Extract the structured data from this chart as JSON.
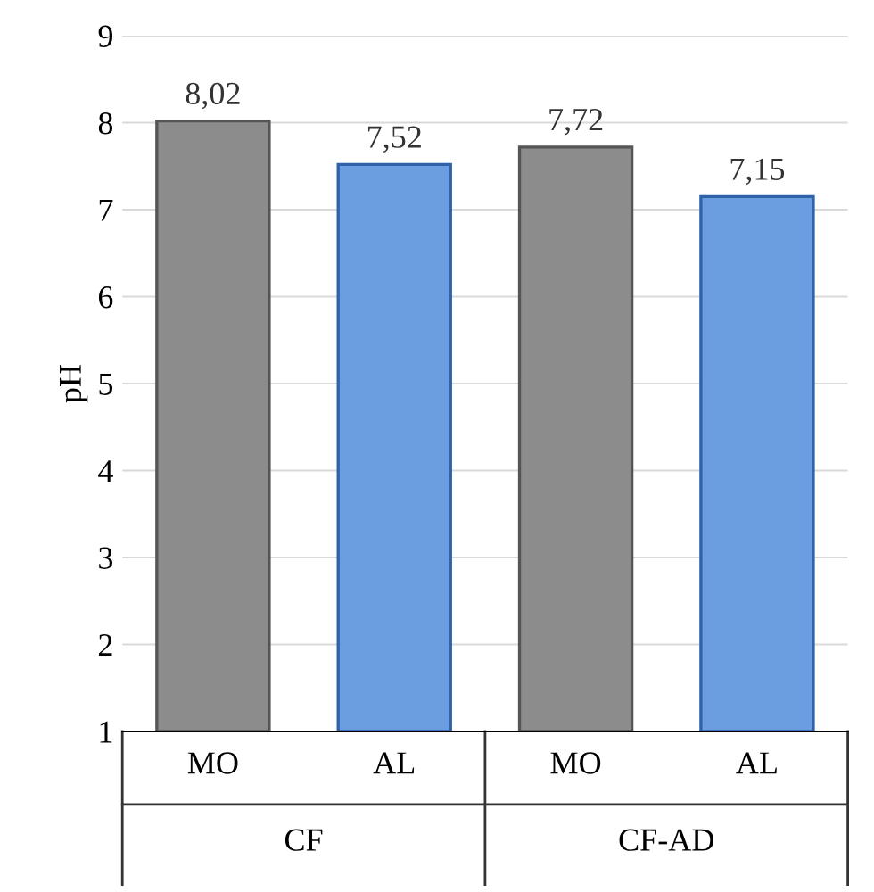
{
  "chart_data": {
    "type": "bar",
    "ylabel": "pH",
    "categories": [
      "MO",
      "AL",
      "MO",
      "AL"
    ],
    "values": [
      8.02,
      7.52,
      7.72,
      7.15
    ],
    "value_labels": [
      "8,02",
      "7,52",
      "7,72",
      "7,15"
    ],
    "colors": [
      "#8c8c8c",
      "#6b9ee0",
      "#8c8c8c",
      "#6b9ee0"
    ],
    "ylim": [
      1,
      9
    ],
    "yticks": [
      1,
      2,
      3,
      4,
      5,
      6,
      7,
      8,
      9
    ],
    "grid": "y",
    "annotations": [
      "CF",
      "CF-AD"
    ]
  }
}
